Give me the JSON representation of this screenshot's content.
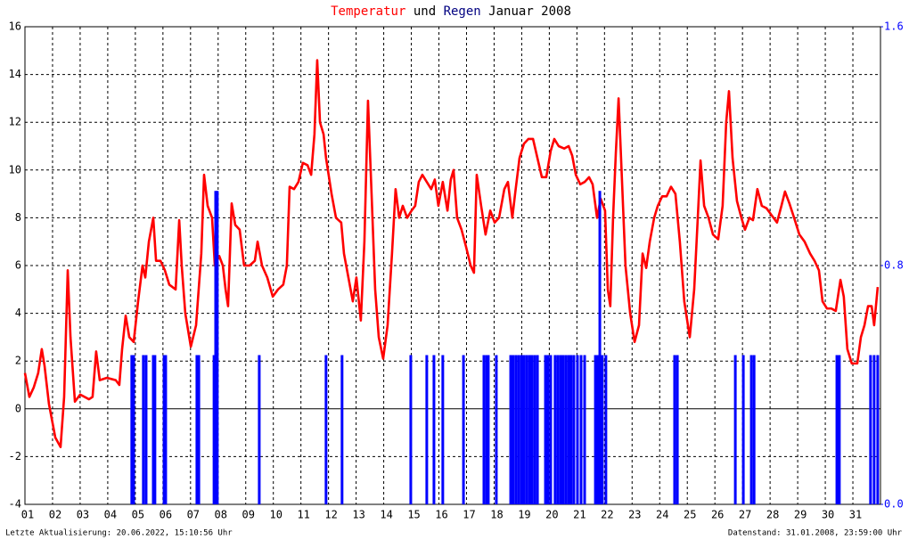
{
  "chart_data": {
    "type": "line",
    "title_connector": "und",
    "title_period": "Januar 2008",
    "footer_left": "Letzte Aktualisierung: 20.06.2022, 15:10:56 Uhr",
    "footer_right": "Datenstand: 31.01.2008, 23:59:00 Uhr",
    "grid": true,
    "xlim": [
      1,
      32
    ],
    "xticks": [
      {
        "value": 1,
        "label": "01"
      },
      {
        "value": 2,
        "label": "02"
      },
      {
        "value": 3,
        "label": "03"
      },
      {
        "value": 4,
        "label": "04"
      },
      {
        "value": 5,
        "label": "05"
      },
      {
        "value": 6,
        "label": "06"
      },
      {
        "value": 7,
        "label": "07"
      },
      {
        "value": 8,
        "label": "08"
      },
      {
        "value": 9,
        "label": "09"
      },
      {
        "value": 10,
        "label": "10"
      },
      {
        "value": 11,
        "label": "11"
      },
      {
        "value": 12,
        "label": "12"
      },
      {
        "value": 13,
        "label": "13"
      },
      {
        "value": 14,
        "label": "14"
      },
      {
        "value": 15,
        "label": "15"
      },
      {
        "value": 16,
        "label": "16"
      },
      {
        "value": 17,
        "label": "17"
      },
      {
        "value": 18,
        "label": "18"
      },
      {
        "value": 19,
        "label": "19"
      },
      {
        "value": 20,
        "label": "20"
      },
      {
        "value": 21,
        "label": "21"
      },
      {
        "value": 22,
        "label": "22"
      },
      {
        "value": 23,
        "label": "23"
      },
      {
        "value": 24,
        "label": "24"
      },
      {
        "value": 25,
        "label": "25"
      },
      {
        "value": 26,
        "label": "26"
      },
      {
        "value": 27,
        "label": "27"
      },
      {
        "value": 28,
        "label": "28"
      },
      {
        "value": 29,
        "label": "29"
      },
      {
        "value": 30,
        "label": "30"
      },
      {
        "value": 31,
        "label": "31"
      }
    ],
    "ylim": [
      -4,
      16
    ],
    "yticks": [
      -4,
      -2,
      0,
      2,
      4,
      6,
      8,
      10,
      12,
      14,
      16
    ],
    "y2lim": [
      0,
      1.6
    ],
    "y2ticks": [
      {
        "value": 0,
        "label": "0.0"
      },
      0.8,
      1.6
    ],
    "series": [
      {
        "name": "Temperatur",
        "color": "#ff0000",
        "type": "line",
        "x": [
          1.0,
          1.16,
          1.32,
          1.48,
          1.61,
          1.71,
          1.87,
          2.1,
          2.29,
          2.42,
          2.55,
          2.65,
          2.81,
          3.0,
          3.32,
          3.45,
          3.58,
          3.71,
          3.97,
          4.29,
          4.42,
          4.52,
          4.65,
          4.78,
          4.94,
          5.1,
          5.26,
          5.36,
          5.49,
          5.65,
          5.75,
          5.91,
          6.07,
          6.23,
          6.46,
          6.59,
          6.68,
          6.81,
          7.01,
          7.2,
          7.39,
          7.49,
          7.62,
          7.78,
          7.88,
          8.04,
          8.17,
          8.27,
          8.36,
          8.49,
          8.62,
          8.78,
          8.94,
          9.14,
          9.33,
          9.43,
          9.59,
          9.78,
          9.98,
          10.17,
          10.36,
          10.49,
          10.59,
          10.75,
          10.91,
          11.07,
          11.24,
          11.37,
          11.49,
          11.59,
          11.69,
          11.82,
          11.91,
          12.11,
          12.27,
          12.46,
          12.56,
          12.72,
          12.88,
          13.01,
          13.17,
          13.3,
          13.43,
          13.56,
          13.69,
          13.82,
          13.98,
          14.14,
          14.3,
          14.43,
          14.56,
          14.69,
          14.85,
          15.01,
          15.14,
          15.27,
          15.4,
          15.56,
          15.72,
          15.85,
          15.98,
          16.14,
          16.31,
          16.43,
          16.53,
          16.66,
          16.82,
          16.98,
          17.15,
          17.27,
          17.37,
          17.53,
          17.69,
          17.86,
          18.02,
          18.18,
          18.37,
          18.5,
          18.66,
          18.76,
          18.92,
          19.08,
          19.24,
          19.41,
          19.57,
          19.73,
          19.89,
          20.05,
          20.18,
          20.34,
          20.54,
          20.7,
          20.83,
          20.96,
          21.12,
          21.28,
          21.44,
          21.57,
          21.73,
          21.86,
          22.02,
          22.12,
          22.21,
          22.31,
          22.41,
          22.51,
          22.6,
          22.76,
          22.93,
          23.09,
          23.25,
          23.38,
          23.51,
          23.64,
          23.8,
          23.93,
          24.09,
          24.25,
          24.41,
          24.57,
          24.73,
          24.89,
          25.09,
          25.25,
          25.38,
          25.48,
          25.61,
          25.77,
          25.93,
          26.12,
          26.28,
          26.41,
          26.51,
          26.64,
          26.8,
          26.96,
          27.09,
          27.25,
          27.38,
          27.54,
          27.7,
          27.87,
          28.06,
          28.25,
          28.41,
          28.54,
          28.7,
          28.87,
          29.06,
          29.25,
          29.45,
          29.61,
          29.77,
          29.9,
          30.06,
          30.22,
          30.38,
          30.55,
          30.67,
          30.8,
          30.96,
          31.16,
          31.29,
          31.42,
          31.55,
          31.68,
          31.77,
          31.9
        ],
        "values": [
          1.5,
          0.5,
          0.9,
          1.5,
          2.5,
          1.8,
          0.2,
          -1.2,
          -1.6,
          0.5,
          5.8,
          3,
          0.3,
          0.6,
          0.4,
          0.5,
          2.4,
          1.2,
          1.3,
          1.2,
          1,
          2.5,
          3.9,
          3,
          2.8,
          4.5,
          6,
          5.5,
          7,
          8,
          6.2,
          6.2,
          5.8,
          5.2,
          5,
          7.9,
          6,
          4,
          2.6,
          3.5,
          6.5,
          9.8,
          8.5,
          8,
          6,
          6.4,
          6,
          5,
          4.3,
          8.6,
          7.7,
          7.5,
          6,
          6,
          6.2,
          7,
          6,
          5.5,
          4.7,
          5,
          5.2,
          6,
          9.3,
          9.2,
          9.5,
          10.3,
          10.2,
          9.8,
          11.5,
          14.6,
          12,
          11.5,
          10.5,
          9,
          8,
          7.8,
          6.5,
          5.5,
          4.5,
          5.5,
          3.7,
          7,
          12.9,
          9,
          5,
          3,
          2.1,
          3.5,
          6.5,
          9.2,
          8,
          8.5,
          8,
          8.3,
          8.5,
          9.5,
          9.8,
          9.5,
          9.2,
          9.6,
          8.5,
          9.5,
          8.3,
          9.6,
          10,
          8,
          7.5,
          6.8,
          6,
          5.7,
          9.8,
          8.5,
          7.3,
          8.3,
          7.8,
          8,
          9.2,
          9.5,
          8,
          9,
          10.5,
          11.1,
          11.3,
          11.3,
          10.5,
          9.7,
          9.7,
          10.8,
          11.3,
          11,
          10.9,
          11,
          10.6,
          9.8,
          9.4,
          9.5,
          9.7,
          9.4,
          8,
          8.8,
          8.3,
          5,
          4.3,
          8,
          10.7,
          13,
          10.5,
          6,
          4,
          2.8,
          3.5,
          6.5,
          5.9,
          7,
          8,
          8.5,
          8.9,
          8.9,
          9.3,
          9,
          7,
          4.5,
          3,
          5,
          8,
          10.4,
          8.5,
          8,
          7.3,
          7.1,
          8.5,
          12,
          13.3,
          10.5,
          8.7,
          8,
          7.5,
          8,
          7.9,
          9.2,
          8.5,
          8.4,
          8.1,
          7.8,
          8.5,
          9.1,
          8.6,
          8,
          7.3,
          7,
          6.5,
          6.2,
          5.8,
          4.5,
          4.2,
          4.2,
          4.1,
          5.4,
          4.7,
          2.5,
          1.9,
          1.9,
          3,
          3.5,
          4.3,
          4.3,
          3.5,
          5.1
        ]
      },
      {
        "name": "Regen",
        "color": "#0000ff",
        "type": "bar",
        "axis": "y2",
        "x": [
          4.87,
          4.94,
          5.29,
          5.39,
          5.65,
          5.71,
          6.04,
          6.1,
          7.23,
          7.3,
          7.85,
          7.91,
          7.97,
          9.49,
          11.91,
          12.49,
          14.98,
          15.56,
          15.82,
          16.14,
          16.89,
          17.63,
          17.73,
          17.79,
          18.08,
          18.6,
          18.69,
          18.79,
          18.89,
          18.99,
          19.08,
          19.18,
          19.28,
          19.37,
          19.47,
          19.57,
          19.86,
          19.95,
          20.05,
          20.21,
          20.31,
          20.41,
          20.5,
          20.6,
          20.7,
          20.79,
          20.89,
          21.02,
          21.15,
          21.28,
          21.67,
          21.76,
          21.83,
          21.92,
          22.05,
          24.54,
          24.64,
          26.74,
          27.03,
          27.32,
          27.42,
          30.42,
          30.51,
          31.64,
          31.77,
          31.9
        ],
        "values": [
          0.5,
          0.5,
          0.5,
          0.5,
          0.5,
          0.5,
          0.5,
          0.5,
          0.5,
          0.5,
          0.5,
          1.05,
          1.05,
          0.5,
          0.5,
          0.5,
          0.5,
          0.5,
          0.5,
          0.5,
          0.5,
          0.5,
          0.5,
          0.5,
          0.5,
          0.5,
          0.5,
          0.5,
          0.5,
          0.5,
          0.5,
          0.5,
          0.5,
          0.5,
          0.5,
          0.5,
          0.5,
          0.5,
          0.5,
          0.5,
          0.5,
          0.5,
          0.5,
          0.5,
          0.5,
          0.5,
          0.5,
          0.5,
          0.5,
          0.5,
          0.5,
          0.5,
          1.05,
          0.5,
          0.5,
          0.5,
          0.5,
          0.5,
          0.5,
          0.5,
          0.5,
          0.5,
          0.5,
          0.5,
          0.5,
          0.5
        ]
      }
    ]
  }
}
